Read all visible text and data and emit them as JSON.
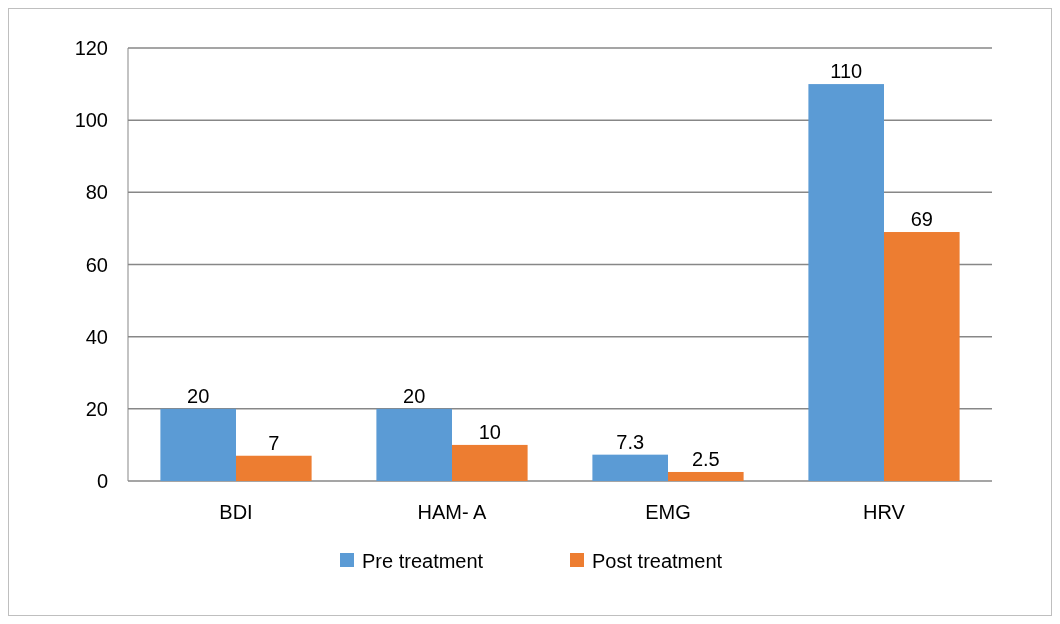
{
  "chart_data": {
    "type": "bar",
    "categories": [
      "BDI",
      "HAM- A",
      "EMG",
      "HRV"
    ],
    "series": [
      {
        "name": "Pre treatment",
        "color": "#5b9bd5",
        "values": [
          20,
          20,
          7.3,
          110
        ]
      },
      {
        "name": "Post treatment",
        "color": "#ed7d31",
        "values": [
          7,
          10,
          2.5,
          69
        ]
      }
    ],
    "ylim": [
      0,
      120
    ],
    "yticks": [
      0,
      20,
      40,
      60,
      80,
      100,
      120
    ],
    "grid": "y",
    "legend": "bottom",
    "data_labels": true
  }
}
